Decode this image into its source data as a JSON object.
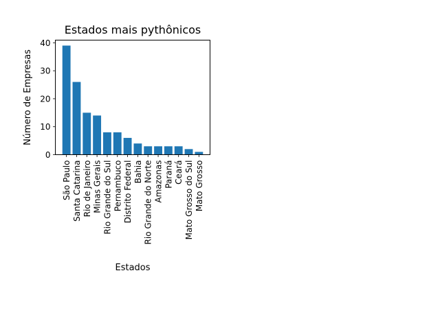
{
  "chart_data": {
    "type": "bar",
    "title": "Estados mais pythônicos",
    "xlabel": "Estados",
    "ylabel": "Número de Empresas",
    "categories": [
      "São Paulo",
      "Santa Catarina",
      "Rio de Janeiro",
      "Minas Gerais",
      "Rio Grande do Sul",
      "Pernambuco",
      "Distrito Federal",
      "Bahia",
      "Rio Grande do Norte",
      "Amazonas",
      "Paraná",
      "Ceará",
      "Mato Grosso do Sul",
      "Mato Grosso"
    ],
    "values": [
      39,
      26,
      15,
      14,
      8,
      8,
      6,
      4,
      3,
      3,
      3,
      3,
      2,
      1
    ],
    "ylim": [
      0,
      40.95
    ],
    "yticks": [
      0,
      10,
      20,
      30,
      40
    ],
    "grid": false,
    "bar_color": "#1f77b4"
  }
}
